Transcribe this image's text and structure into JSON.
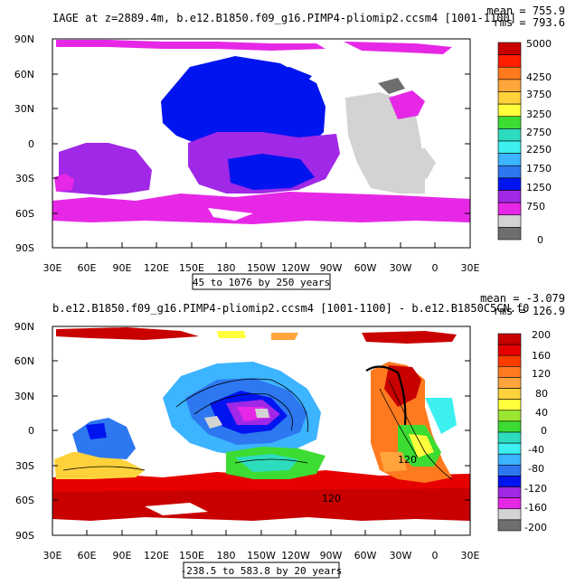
{
  "panels": [
    {
      "title": "IAGE at z=2889.4m, b.e12.B1850.f09_g16.PIMP4-pliomip2.ccsm4 [1001-1100]",
      "mean_text": "mean = 755.9",
      "rms_text": "rms = 793.6",
      "range_text": "45 to 1076 by 250 years",
      "lat_labels": [
        "90N",
        "60N",
        "30N",
        "0",
        "30S",
        "60S",
        "90S"
      ],
      "lon_labels": [
        "30E",
        "60E",
        "90E",
        "120E",
        "150E",
        "180",
        "150W",
        "120W",
        "90W",
        "60W",
        "30W",
        "0",
        "30E"
      ],
      "colorbar_labels": [
        "5000",
        "4250",
        "3750",
        "3250",
        "2750",
        "2250",
        "1750",
        "1250",
        "750",
        "0"
      ],
      "colorbar_colors": [
        "#c80000",
        "#ff1e00",
        "#ff7a1e",
        "#ffa53c",
        "#ffd23c",
        "#ffff3c",
        "#3cdc32",
        "#2ddcbe",
        "#3cf0f0",
        "#3cb4ff",
        "#2d78f0",
        "#0014f0",
        "#a028e6",
        "#e628e6",
        "#d3d3d3",
        "#6e6e6e"
      ]
    },
    {
      "title": "b.e12.B1850.f09_g16.PIMP4-pliomip2.ccsm4 [1001-1100] - b.e12.B1850C5CN.f0",
      "mean_text": "mean = -3.079",
      "rms_text": "rms = 126.9",
      "range_text": "-238.5 to 583.8 by 20 years",
      "lat_labels": [
        "90N",
        "60N",
        "30N",
        "0",
        "30S",
        "60S",
        "90S"
      ],
      "lon_labels": [
        "30E",
        "60E",
        "90E",
        "120E",
        "150E",
        "180",
        "150W",
        "120W",
        "90W",
        "60W",
        "30W",
        "0",
        "30E"
      ],
      "colorbar_labels": [
        "200",
        "160",
        "120",
        "80",
        "40",
        "0",
        "-40",
        "-80",
        "-120",
        "-160",
        "-200"
      ],
      "colorbar_colors": [
        "#c80000",
        "#e60000",
        "#ff3c00",
        "#ff7a1e",
        "#ffa53c",
        "#ffd23c",
        "#ffff3c",
        "#9be632",
        "#3cdc32",
        "#2ddcbe",
        "#3cf0f0",
        "#3cb4ff",
        "#2d78f0",
        "#0014f0",
        "#a028e6",
        "#e628e6",
        "#d3d3d3",
        "#6e6e6e"
      ],
      "contour_labels": [
        "120",
        "120"
      ]
    }
  ]
}
